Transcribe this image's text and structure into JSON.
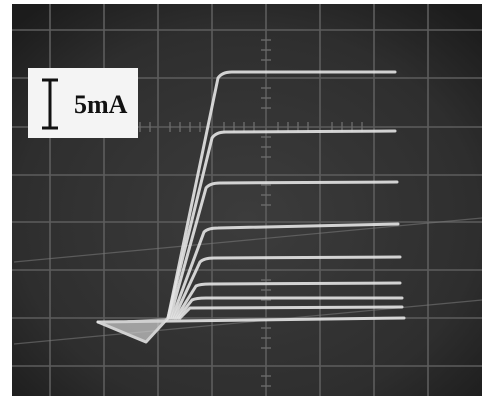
{
  "scale_label": {
    "text": "5mA"
  }
}
